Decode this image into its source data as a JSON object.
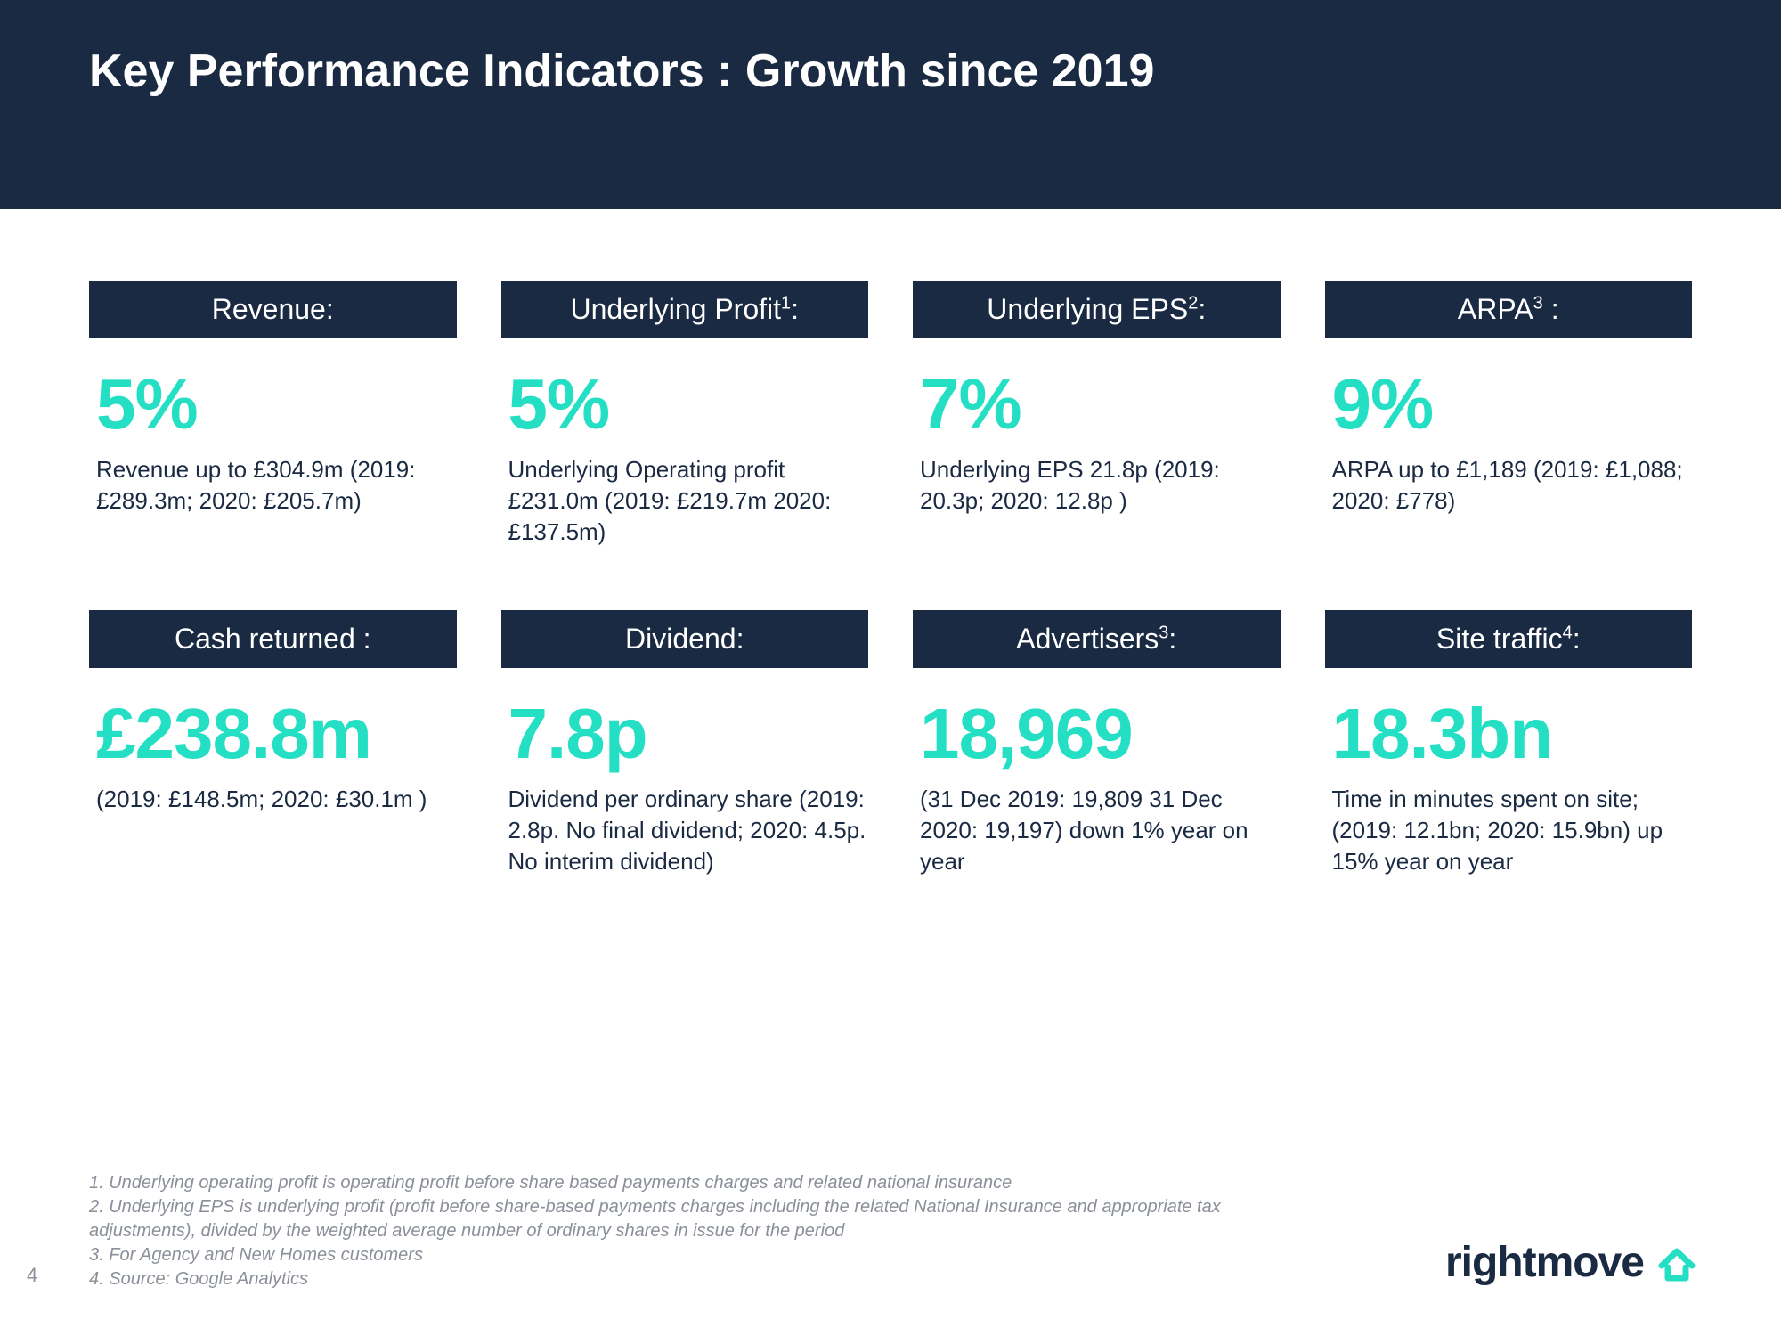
{
  "header": {
    "title": "Key Performance Indicators : Growth since 2019"
  },
  "colors": {
    "accent": "#24dfc4",
    "dark": "#1a2a42",
    "muted": "#8a8f99",
    "bg": "#ffffff"
  },
  "kpis": [
    {
      "label": "Revenue:",
      "sup": "",
      "value": "5%",
      "desc": "Revenue up to £304.9m (2019: £289.3m; 2020: £205.7m)"
    },
    {
      "label": "Underlying Profit",
      "sup": "1",
      "tail": ":",
      "value": "5%",
      "desc": "Underlying Operating profit £231.0m (2019: £219.7m 2020: £137.5m)"
    },
    {
      "label": "Underlying EPS",
      "sup": "2",
      "tail": ":",
      "value": "7%",
      "desc": "Underlying EPS 21.8p (2019: 20.3p; 2020: 12.8p )"
    },
    {
      "label": "ARPA",
      "sup": "3",
      "tail": " :",
      "value": "9%",
      "desc": "ARPA up to £1,189 (2019: £1,088; 2020: £778)"
    },
    {
      "label": "Cash returned :",
      "sup": "",
      "value": "£238.8m",
      "desc": "(2019: £148.5m; 2020: £30.1m )"
    },
    {
      "label": "Dividend:",
      "sup": "",
      "value": "7.8p",
      "desc": "Dividend per ordinary share (2019: 2.8p. No final dividend; 2020: 4.5p. No interim dividend)"
    },
    {
      "label": "Advertisers",
      "sup": "3",
      "tail": ":",
      "value": "18,969",
      "desc": "(31 Dec 2019: 19,809 31 Dec 2020: 19,197) down 1% year on year"
    },
    {
      "label": "Site traffic",
      "sup": "4",
      "tail": ":",
      "value": "18.3bn",
      "desc": "Time in minutes spent on site; (2019: 12.1bn;  2020: 15.9bn) up 15% year on year"
    }
  ],
  "footnotes": [
    "1. Underlying operating profit is operating profit before share based payments charges and related national insurance",
    "2. Underlying EPS is underlying profit (profit before share-based payments charges including the related National Insurance and appropriate tax adjustments), divided by the weighted average number of ordinary shares in issue for the period",
    "3. For Agency and New Homes customers",
    "4. Source: Google Analytics"
  ],
  "page_number": "4",
  "logo_text": "rightmove"
}
